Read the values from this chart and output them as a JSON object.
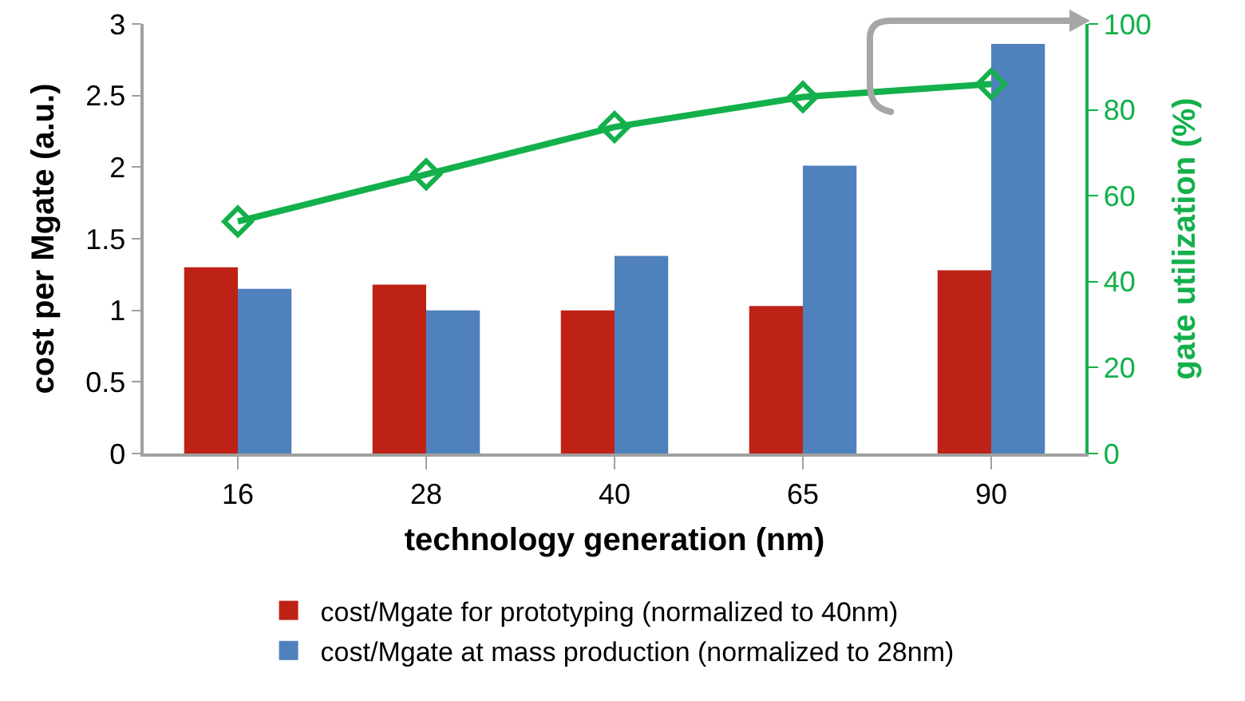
{
  "chart_data": {
    "type": "bar",
    "xlabel": "technology generation (nm)",
    "ylabel": "cost per Mgate (a.u.)",
    "y2label": "gate utilization (%)",
    "categories": [
      "16",
      "28",
      "40",
      "65",
      "90"
    ],
    "series": [
      {
        "name": "cost/Mgate for prototyping (normalized to 40nm)",
        "color": "#be2217",
        "values": [
          1.3,
          1.18,
          1.0,
          1.03,
          1.28
        ]
      },
      {
        "name": "cost/Mgate at mass production (normalized to 28nm)",
        "color": "#4f81bd",
        "values": [
          1.15,
          1.0,
          1.38,
          2.01,
          2.86
        ]
      },
      {
        "type": "line",
        "axis": "y2",
        "color": "#13b04b",
        "marker": "diamond",
        "values": [
          54,
          65,
          76,
          83,
          86
        ]
      }
    ],
    "ylim": [
      0,
      3
    ],
    "yticks": [
      0,
      0.5,
      1,
      1.5,
      2,
      2.5,
      3
    ],
    "y2lim": [
      0,
      100
    ],
    "y2ticks": [
      0,
      20,
      40,
      60,
      80,
      100
    ],
    "grid": false,
    "legend": "bottom"
  }
}
